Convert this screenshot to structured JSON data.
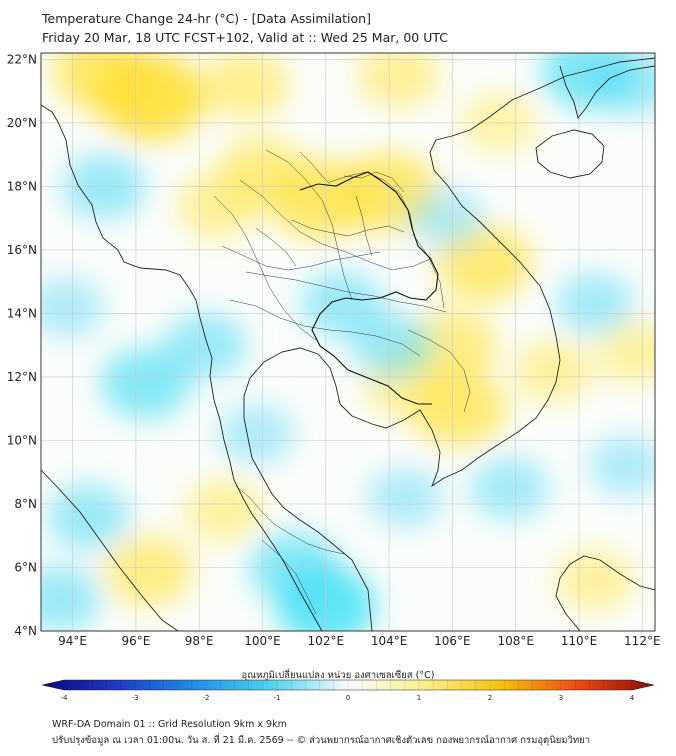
{
  "header": {
    "title_line1": "Temperature Change 24-hr (°C) - [Data Assimilation]",
    "title_line2": "Friday 20 Mar, 18 UTC FCST+102, Valid at :: Wed 25 Mar, 00 UTC"
  },
  "map": {
    "lat_ticks": [
      "22°N",
      "20°N",
      "18°N",
      "16°N",
      "14°N",
      "12°N",
      "10°N",
      "8°N",
      "6°N",
      "4°N"
    ],
    "lat_values": [
      22,
      20,
      18,
      16,
      14,
      12,
      10,
      8,
      6,
      4
    ],
    "lon_ticks": [
      "94°E",
      "96°E",
      "98°E",
      "100°E",
      "102°E",
      "104°E",
      "106°E",
      "108°E",
      "110°E",
      "112°E"
    ],
    "lon_values": [
      94,
      96,
      98,
      100,
      102,
      104,
      106,
      108,
      110,
      112
    ],
    "lat_range": [
      4,
      22.2
    ],
    "lon_range": [
      93,
      112.4
    ],
    "field_patches": [
      {
        "lon": 96.5,
        "lat": 20.8,
        "value": 1.3
      },
      {
        "lon": 95.0,
        "lat": 21.6,
        "value": 1.0
      },
      {
        "lon": 99.5,
        "lat": 21.2,
        "value": 0.6
      },
      {
        "lon": 101.8,
        "lat": 17.6,
        "value": 1.0
      },
      {
        "lon": 104.0,
        "lat": 17.8,
        "value": 1.0
      },
      {
        "lon": 100.0,
        "lat": 18.4,
        "value": 0.7
      },
      {
        "lon": 98.6,
        "lat": 17.4,
        "value": 0.5
      },
      {
        "lon": 107.0,
        "lat": 15.6,
        "value": 0.9
      },
      {
        "lon": 106.0,
        "lat": 13.0,
        "value": 0.7
      },
      {
        "lon": 106.2,
        "lat": 11.0,
        "value": 0.9
      },
      {
        "lon": 104.5,
        "lat": 11.8,
        "value": 0.5
      },
      {
        "lon": 96.4,
        "lat": 5.9,
        "value": 0.7
      },
      {
        "lon": 110.5,
        "lat": 5.6,
        "value": 0.4
      },
      {
        "lon": 109.2,
        "lat": 12.2,
        "value": 0.4
      },
      {
        "lon": 111.8,
        "lat": 12.8,
        "value": 0.4
      },
      {
        "lon": 104.3,
        "lat": 21.5,
        "value": 0.5
      },
      {
        "lon": 107.5,
        "lat": 20.0,
        "value": 0.3
      },
      {
        "lon": 98.8,
        "lat": 7.8,
        "value": 0.4
      },
      {
        "lon": 110.3,
        "lat": 21.6,
        "value": -0.8
      },
      {
        "lon": 111.7,
        "lat": 21.3,
        "value": -0.5
      },
      {
        "lon": 102.0,
        "lat": 4.8,
        "value": -1.0
      },
      {
        "lon": 101.0,
        "lat": 6.0,
        "value": -0.7
      },
      {
        "lon": 96.3,
        "lat": 11.8,
        "value": -0.7
      },
      {
        "lon": 98.2,
        "lat": 13.0,
        "value": -0.5
      },
      {
        "lon": 102.5,
        "lat": 14.3,
        "value": -0.5
      },
      {
        "lon": 104.1,
        "lat": 13.0,
        "value": -0.5
      },
      {
        "lon": 94.5,
        "lat": 7.6,
        "value": -0.5
      },
      {
        "lon": 93.6,
        "lat": 5.0,
        "value": -0.5
      },
      {
        "lon": 95.0,
        "lat": 18.0,
        "value": -0.5
      },
      {
        "lon": 105.8,
        "lat": 17.0,
        "value": -0.3
      },
      {
        "lon": 107.8,
        "lat": 8.5,
        "value": -0.4
      },
      {
        "lon": 104.5,
        "lat": 8.2,
        "value": -0.3
      },
      {
        "lon": 110.5,
        "lat": 14.3,
        "value": -0.4
      },
      {
        "lon": 111.5,
        "lat": 9.2,
        "value": -0.3
      },
      {
        "lon": 93.8,
        "lat": 14.2,
        "value": -0.3
      },
      {
        "lon": 99.8,
        "lat": 10.2,
        "value": -0.3
      }
    ]
  },
  "colorbar": {
    "label": "อุณหภูมิเปลี่ยนแปลง หน่วย องศาเซลเซียส (°C)",
    "min": -4,
    "max": 4,
    "tick_labels": [
      "-4",
      "-3",
      "-2",
      "-1",
      "0",
      "1",
      "2",
      "3",
      "4"
    ],
    "tick_values": [
      -4,
      -3,
      -2,
      -1,
      0,
      1,
      2,
      3,
      4
    ]
  },
  "footer": {
    "line1": "WRF-DA Domain 01 :: Grid Resolution 9km x 9km",
    "line2": "ปรับปรุงข้อมูล ณ เวลา 01:00น. วัน ส. ที่ 21 มี.ค. 2569 -- © ส่วนพยากรณ์อากาศเชิงตัวเลข กองพยากรณ์อากาศ กรมอุตุนิยมวิทยา"
  }
}
